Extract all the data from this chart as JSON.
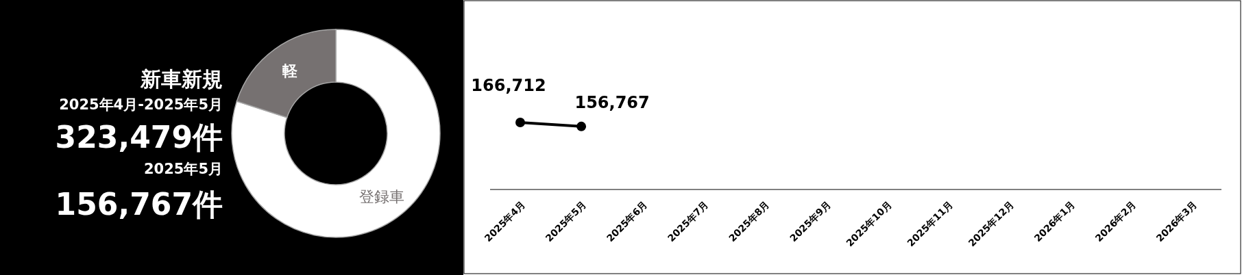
{
  "chart_data": [
    {
      "type": "donut",
      "title": "新車新規",
      "annotations": [
        "2025年4月-2025年5月",
        "323,479件",
        "2025年5月",
        "156,767件"
      ],
      "categories": [
        "登録車",
        "軽"
      ],
      "values": [
        80,
        20
      ],
      "colors": [
        "#ffffff",
        "#767171"
      ]
    },
    {
      "type": "line",
      "categories": [
        "2025年4月",
        "2025年5月",
        "2025年6月",
        "2025年7月",
        "2025年8月",
        "2025年9月",
        "2025年10月",
        "2025年11月",
        "2025年12月",
        "2026年1月",
        "2026年2月",
        "2026年3月"
      ],
      "values": [
        166712,
        156767,
        null,
        null,
        null,
        null,
        null,
        null,
        null,
        null,
        null,
        null
      ],
      "value_labels": [
        "166,712",
        "156,767",
        null,
        null,
        null,
        null,
        null,
        null,
        null,
        null,
        null,
        null
      ],
      "color": "#000000",
      "marker": "circle"
    }
  ]
}
